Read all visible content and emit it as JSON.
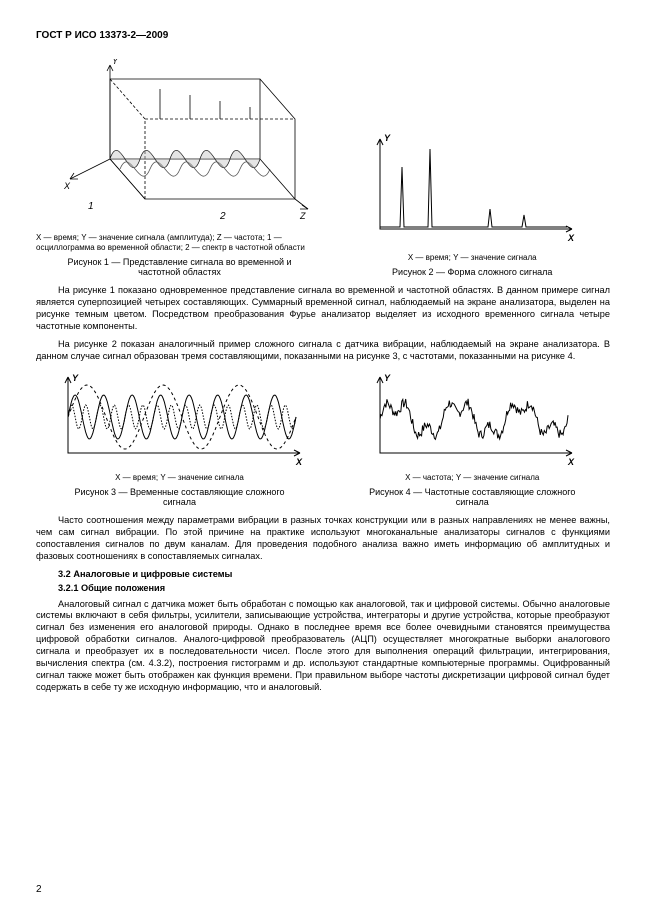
{
  "header": "ГОСТ Р ИСО 13373-2—2009",
  "page_number": "2",
  "figure1": {
    "legend": "X — время; Y — значение сигнала (амплитуда); Z — частота; 1 — осциллограмма во временной области; 2 — спектр в частотной области",
    "caption": "Рисунок 1 — Представление сигнала во временной и частотной областях",
    "axes": {
      "x": "X",
      "y": "Y",
      "z": "Z"
    },
    "markers": {
      "one": "1",
      "two": "2"
    },
    "style": {
      "stroke": "#000000",
      "fill_hatch": "#8a8a8a",
      "bg": "#ffffff",
      "stroke_width": 0.8
    }
  },
  "figure2": {
    "legend": "X — время; Y — значение сигнала",
    "caption": "Рисунок 2 — Форма сложного сигнала",
    "axes": {
      "x": "X",
      "y": "Y"
    },
    "peaks_x": [
      40,
      68,
      128,
      162
    ],
    "peaks_h": [
      60,
      78,
      18,
      12
    ],
    "style": {
      "stroke": "#000000",
      "bg": "#ffffff",
      "stroke_width": 1
    }
  },
  "para1": "На рисунке 1 показано одновременное представление сигнала во временной и частотной областях. В данном примере сигнал является суперпозицией четырех составляющих. Суммарный временной сигнал, наблюдаемый на экране анализатора, выделен на рисунке темным цветом. Посредством преобразования Фурье анализатор выделяет из исходного временного сигнала четыре частотные компоненты.",
  "para2": "На рисунке 2 показан аналогичный пример сложного сигнала с датчика вибрации, наблюдаемый на экране анализатора. В данном случае сигнал образован тремя составляющими, показанными на рисунке 3, с частотами, показанными на рисунке 4.",
  "figure3": {
    "legend": "X — время; Y — значение сигнала",
    "caption": "Рисунок 3 — Временные составляющие сложного сигнала",
    "axes": {
      "x": "X",
      "y": "Y"
    },
    "waves": [
      {
        "amplitude": 32,
        "periods": 3,
        "dash": "3 3"
      },
      {
        "amplitude": 22,
        "periods": 8,
        "dash": "none"
      },
      {
        "amplitude": 12,
        "periods": 16,
        "dash": "1.5 1.5"
      }
    ],
    "style": {
      "stroke": "#000000",
      "bg": "#ffffff",
      "stroke_width": 1
    }
  },
  "figure4": {
    "legend": "X — частота; Y — значение сигнала",
    "caption": "Рисунок 4 — Частотные составляющие сложного сигнала",
    "axes": {
      "x": "X",
      "y": "Y"
    },
    "style": {
      "stroke": "#000000",
      "bg": "#ffffff",
      "stroke_width": 1
    }
  },
  "para3": "Часто соотношения между параметрами вибрации в разных точках конструкции или в разных направлениях не менее важны, чем сам сигнал вибрации. По этой причине на практике используют многоканальные анализаторы сигналов с функциями сопоставления сигналов по двум каналам. Для проведения подобного анализа важно иметь информацию об амплитудных и фазовых соотношениях в сопоставляемых сигналах.",
  "sec32": "3.2 Аналоговые и цифровые системы",
  "sec321": "3.2.1 Общие положения",
  "para4": "Аналоговый сигнал с датчика может быть обработан с помощью как аналоговой, так и цифровой системы. Обычно аналоговые системы включают в себя фильтры, усилители, записывающие устройства, интеграторы и другие устройства, которые преобразуют сигнал без изменения его аналоговой природы. Однако в последнее время все более очевидными становятся преимущества цифровой обработки сигналов. Аналого-цифровой преобразователь (АЦП) осуществляет многократные выборки аналогового сигнала и преобразует их в последовательности чисел. После этого для выполнения операций фильтрации, интегрирования, вычисления спектра (см. 4.3.2), построения гистограмм и др. используют стандартные компьютерные программы. Оцифрованный сигнал также может быть отображен как функция времени. При правильном выборе частоты дискретизации цифровой сигнал будет содержать в себе ту же исходную информацию, что и аналоговый."
}
